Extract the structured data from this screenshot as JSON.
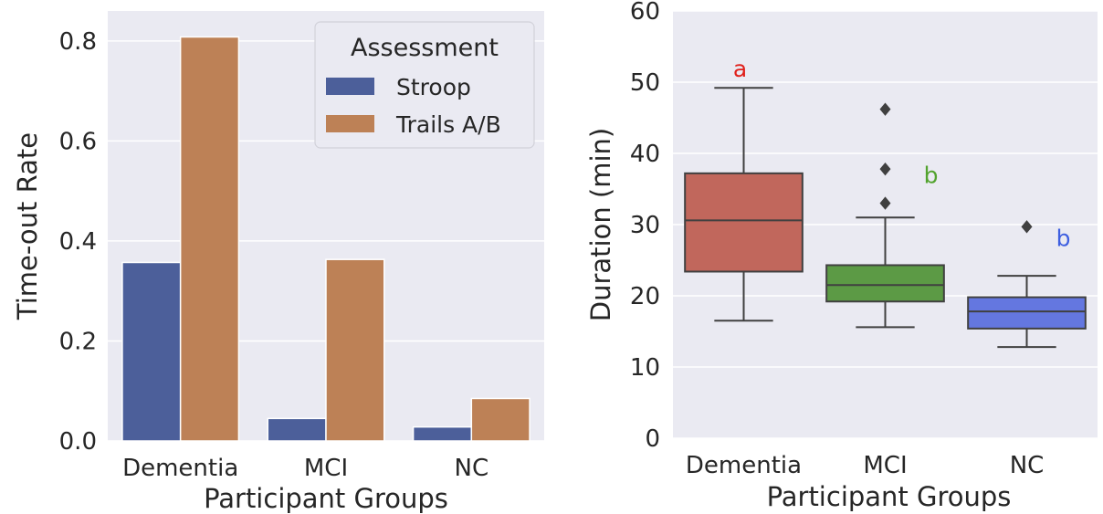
{
  "chart_data": [
    {
      "type": "bar",
      "xlabel": "Participant Groups",
      "ylabel": "Time-out Rate",
      "categories": [
        "Dementia",
        "MCI",
        "NC"
      ],
      "ylim": [
        0,
        0.86
      ],
      "yticks": [
        "0.0",
        "0.2",
        "0.4",
        "0.6",
        "0.8"
      ],
      "grid": true,
      "legend": {
        "title": "Assessment",
        "placement": "top-right"
      },
      "series": [
        {
          "name": "Stroop",
          "color": "#4c5f9a",
          "values": [
            0.357,
            0.045,
            0.028
          ]
        },
        {
          "name": "Trails A/B",
          "color": "#bd8156",
          "values": [
            0.808,
            0.363,
            0.085
          ]
        }
      ]
    },
    {
      "type": "box",
      "xlabel": "Participant Groups",
      "ylabel": "Duration (min)",
      "categories": [
        "Dementia",
        "MCI",
        "NC"
      ],
      "ylim": [
        0,
        60
      ],
      "yticks": [
        "0",
        "10",
        "20",
        "30",
        "40",
        "50",
        "60"
      ],
      "grid": true,
      "boxes": [
        {
          "whisker_low": 16.5,
          "q1": 23.4,
          "median": 30.6,
          "q3": 37.2,
          "whisker_high": 49.2,
          "outliers": [],
          "color": "#c1675c",
          "annotation": "a",
          "annotation_color": "#e0201b"
        },
        {
          "whisker_low": 15.6,
          "q1": 19.2,
          "median": 21.5,
          "q3": 24.3,
          "whisker_high": 31.0,
          "outliers": [
            33.0,
            37.8,
            46.2
          ],
          "color": "#5c9a45",
          "annotation": "b",
          "annotation_color": "#52a32e"
        },
        {
          "whisker_low": 12.8,
          "q1": 15.4,
          "median": 17.8,
          "q3": 19.8,
          "whisker_high": 22.8,
          "outliers": [
            29.7
          ],
          "color": "#6477e0",
          "annotation": "b",
          "annotation_color": "#3e5fe0"
        }
      ]
    }
  ]
}
